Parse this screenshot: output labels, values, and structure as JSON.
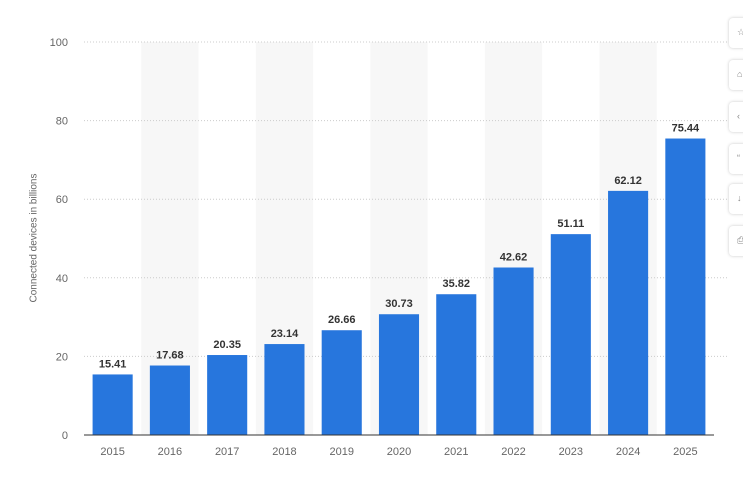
{
  "chart_data": {
    "type": "bar",
    "title": "",
    "xlabel": "",
    "ylabel": "Connected devices in billions",
    "categories": [
      "2015",
      "2016",
      "2017",
      "2018",
      "2019",
      "2020",
      "2021",
      "2022",
      "2023",
      "2024",
      "2025"
    ],
    "values": [
      15.41,
      17.68,
      20.35,
      23.14,
      26.66,
      30.73,
      35.82,
      42.62,
      51.11,
      62.12,
      75.44
    ],
    "data_labels": [
      "15.41",
      "17.68",
      "20.35",
      "23.14",
      "26.66",
      "30.73",
      "35.82",
      "42.62",
      "51.11",
      "62.12",
      "75.44"
    ],
    "ylim": [
      0,
      100
    ],
    "yticks": [
      "0",
      "20",
      "40",
      "60",
      "80",
      "100"
    ],
    "grid": true,
    "legend": "none",
    "colors": {
      "bar": "#2776dd",
      "label": "#333333",
      "tick": "#666666",
      "grid": "#cccccc",
      "band": "#f7f7f7",
      "axis": "#333333"
    }
  },
  "toolbar": {
    "icons": [
      "star-icon",
      "bell-icon",
      "share-icon",
      "quote-icon",
      "download-icon",
      "print-icon"
    ]
  }
}
